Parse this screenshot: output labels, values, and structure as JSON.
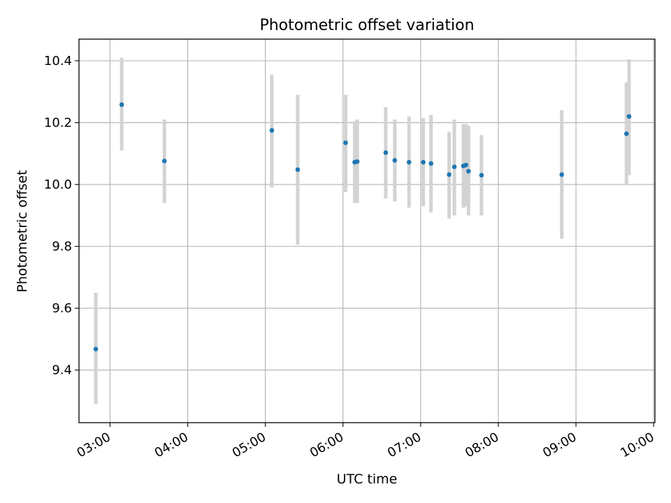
{
  "chart_data": {
    "type": "scatter",
    "title": "Photometric offset variation",
    "xlabel": "UTC time",
    "ylabel": "Photometric offset",
    "x_unit": "UTC time (HH:MM)",
    "xlim": [
      "02:36",
      "10:01"
    ],
    "ylim": [
      9.23,
      10.47
    ],
    "x_ticks": [
      "03:00",
      "04:00",
      "05:00",
      "06:00",
      "07:00",
      "08:00",
      "09:00",
      "10:00"
    ],
    "y_ticks": [
      "9.4",
      "9.6",
      "9.8",
      "10.0",
      "10.2",
      "10.4"
    ],
    "grid": true,
    "colors": {
      "points": "#1f77b4",
      "error_bars": "#d3d3d3",
      "grid": "#b0b0b0"
    },
    "points": [
      {
        "x": "02:49",
        "y": 9.468,
        "y_low": 9.29,
        "y_high": 9.65
      },
      {
        "x": "03:09",
        "y": 10.258,
        "y_low": 10.11,
        "y_high": 10.41
      },
      {
        "x": "03:42",
        "y": 10.076,
        "y_low": 9.94,
        "y_high": 10.21
      },
      {
        "x": "05:05",
        "y": 10.175,
        "y_low": 9.99,
        "y_high": 10.355
      },
      {
        "x": "05:25",
        "y": 10.048,
        "y_low": 9.805,
        "y_high": 10.29
      },
      {
        "x": "06:02",
        "y": 10.135,
        "y_low": 9.975,
        "y_high": 10.29
      },
      {
        "x": "06:09",
        "y": 10.072,
        "y_low": 9.94,
        "y_high": 10.205
      },
      {
        "x": "06:11",
        "y": 10.074,
        "y_low": 9.94,
        "y_high": 10.21
      },
      {
        "x": "06:33",
        "y": 10.103,
        "y_low": 9.955,
        "y_high": 10.25
      },
      {
        "x": "06:40",
        "y": 10.078,
        "y_low": 9.945,
        "y_high": 10.21
      },
      {
        "x": "06:51",
        "y": 10.072,
        "y_low": 9.925,
        "y_high": 10.22
      },
      {
        "x": "07:02",
        "y": 10.072,
        "y_low": 9.93,
        "y_high": 10.215
      },
      {
        "x": "07:08",
        "y": 10.068,
        "y_low": 9.91,
        "y_high": 10.225
      },
      {
        "x": "07:22",
        "y": 10.032,
        "y_low": 9.89,
        "y_high": 10.17
      },
      {
        "x": "07:26",
        "y": 10.057,
        "y_low": 9.9,
        "y_high": 10.21
      },
      {
        "x": "07:33",
        "y": 10.06,
        "y_low": 9.925,
        "y_high": 10.195
      },
      {
        "x": "07:35",
        "y": 10.063,
        "y_low": 9.93,
        "y_high": 10.195
      },
      {
        "x": "07:37",
        "y": 10.043,
        "y_low": 9.9,
        "y_high": 10.19
      },
      {
        "x": "07:47",
        "y": 10.03,
        "y_low": 9.9,
        "y_high": 10.16
      },
      {
        "x": "08:49",
        "y": 10.032,
        "y_low": 9.825,
        "y_high": 10.24
      },
      {
        "x": "09:39",
        "y": 10.164,
        "y_low": 10.0,
        "y_high": 10.33
      },
      {
        "x": "09:41",
        "y": 10.22,
        "y_low": 10.03,
        "y_high": 10.405
      }
    ]
  }
}
